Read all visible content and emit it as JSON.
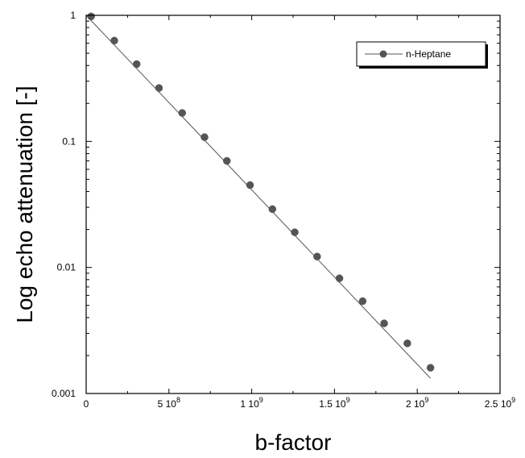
{
  "chart_data": {
    "type": "scatter",
    "title": "",
    "xlabel": "b-factor",
    "ylabel": "Log echo attenuation [-]",
    "xlim": [
      0,
      2500000000
    ],
    "ylim": [
      0.001,
      1
    ],
    "yscale": "log",
    "grid": false,
    "legend_position": "top-right",
    "x_ticks": [
      {
        "value": 0,
        "mantissa": "0",
        "exponent": ""
      },
      {
        "value": 500000000,
        "mantissa": "5 10",
        "exponent": "8"
      },
      {
        "value": 1000000000,
        "mantissa": "1 10",
        "exponent": "9"
      },
      {
        "value": 1500000000,
        "mantissa": "1.5 10",
        "exponent": "9"
      },
      {
        "value": 2000000000,
        "mantissa": "2 10",
        "exponent": "9"
      },
      {
        "value": 2500000000,
        "mantissa": "2.5 10",
        "exponent": "9"
      }
    ],
    "y_ticks": [
      {
        "value": 1,
        "label": "1"
      },
      {
        "value": 0.1,
        "label": "0.1"
      },
      {
        "value": 0.01,
        "label": "0.01"
      },
      {
        "value": 0.001,
        "label": "0.001"
      }
    ],
    "series": [
      {
        "name": "n-Heptane",
        "color": "#555555",
        "marker": "circle",
        "x": [
          30000000,
          170000000,
          305000000,
          440000000,
          580000000,
          715000000,
          850000000,
          990000000,
          1125000000,
          1260000000,
          1395000000,
          1530000000,
          1670000000,
          1800000000,
          1940000000,
          2080000000
        ],
        "y": [
          0.98,
          0.63,
          0.41,
          0.265,
          0.168,
          0.108,
          0.07,
          0.045,
          0.029,
          0.019,
          0.0122,
          0.0082,
          0.0054,
          0.0036,
          0.0025,
          0.0016
        ]
      }
    ],
    "fit_line": {
      "color": "#555555",
      "x": [
        0,
        2080000000
      ],
      "y": [
        1,
        0.00132
      ]
    }
  }
}
